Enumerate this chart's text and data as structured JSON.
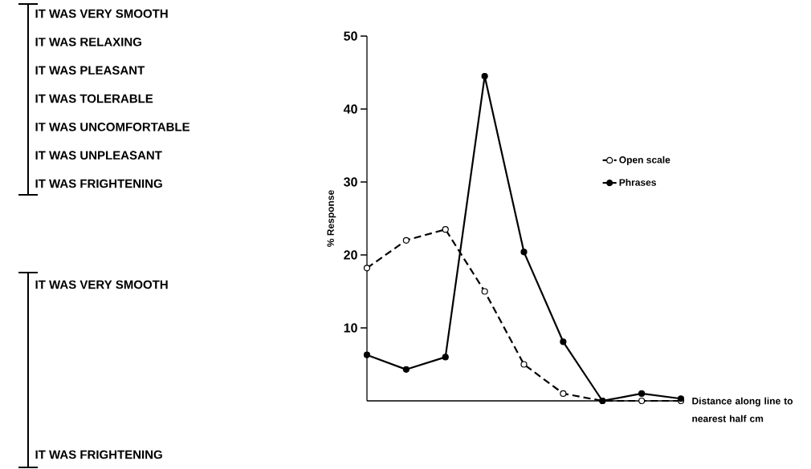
{
  "chart_data": {
    "type": "line",
    "xlabel": "Distance along line to nearest half cm",
    "ylabel": "% Response",
    "categories": [
      null,
      null,
      null,
      null,
      null,
      null,
      null,
      null,
      null
    ],
    "series": [
      {
        "name": "Open scale",
        "color": "#000000",
        "line_style": "dashed",
        "values": [
          18.2,
          22,
          23.5,
          15,
          5,
          1,
          0,
          0,
          0
        ]
      },
      {
        "name": "Phrases",
        "color": "#000000",
        "line_style": "solid",
        "values": [
          6.3,
          4.3,
          6,
          44.5,
          20.4,
          8.1,
          0,
          1,
          0.3
        ]
      }
    ],
    "ylim": [
      0,
      50
    ],
    "yticks": [
      10,
      20,
      30,
      40,
      50
    ],
    "marker": "circle",
    "legend": "top right",
    "grid": false,
    "annotations": [
      "IT WAS VERY SMOOTH",
      "IT WAS RELAXING",
      "IT WAS PLEASANT",
      "IT WAS TOLERABLE",
      "IT WAS UNCOMFORTABLE",
      "IT WAS UNPLEASANT",
      "IT WAS FRIGHTENING",
      "IT WAS VERY SMOOTH",
      "IT WAS FRIGHTENING"
    ]
  }
}
